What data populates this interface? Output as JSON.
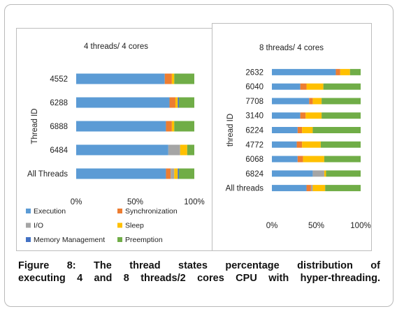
{
  "chart_data": [
    {
      "type": "bar",
      "orientation": "horizontal",
      "stacked": "percent",
      "title": "4 threads/ 4 cores",
      "ylabel": "Thread ID",
      "categories": [
        "4552",
        "6288",
        "6888",
        "6484",
        "All Threads"
      ],
      "xticks": [
        "0%",
        "50%",
        "100%"
      ],
      "xlim": [
        0,
        100
      ],
      "grid": false,
      "legend_position": "bottom",
      "series": [
        {
          "name": "Execution",
          "color": "#5b9bd5",
          "values": [
            75,
            79,
            76,
            78,
            76
          ]
        },
        {
          "name": "Synchronization",
          "color": "#ed7d31",
          "values": [
            6,
            5,
            5,
            0,
            4
          ]
        },
        {
          "name": "I/O",
          "color": "#a5a5a5",
          "values": [
            0,
            0,
            0,
            10,
            3
          ]
        },
        {
          "name": "Sleep",
          "color": "#ffc000",
          "values": [
            2,
            2,
            2,
            6,
            3
          ]
        },
        {
          "name": "Memory Management",
          "color": "#4472c4",
          "values": [
            0,
            1,
            0,
            0,
            1
          ]
        },
        {
          "name": "Preemption",
          "color": "#70ad47",
          "values": [
            17,
            13,
            17,
            6,
            13
          ]
        }
      ]
    },
    {
      "type": "bar",
      "orientation": "horizontal",
      "stacked": "percent",
      "title": "8 threads/ 4 cores",
      "ylabel": "thread ID",
      "categories": [
        "2632",
        "6040",
        "7708",
        "3140",
        "6224",
        "4772",
        "6068",
        "6824",
        "All threads"
      ],
      "xticks": [
        "0%",
        "50%",
        "100%"
      ],
      "xlim": [
        0,
        100
      ],
      "grid": false,
      "series": [
        {
          "name": "Execution",
          "color": "#5b9bd5",
          "values": [
            72,
            32,
            42,
            32,
            29,
            28,
            29,
            46,
            39
          ]
        },
        {
          "name": "Synchronization",
          "color": "#ed7d31",
          "values": [
            5,
            7,
            4,
            6,
            5,
            6,
            6,
            0,
            5
          ]
        },
        {
          "name": "I/O",
          "color": "#a5a5a5",
          "values": [
            0,
            0,
            0,
            0,
            0,
            0,
            0,
            13,
            2
          ]
        },
        {
          "name": "Sleep",
          "color": "#ffc000",
          "values": [
            11,
            19,
            10,
            18,
            12,
            21,
            24,
            2,
            14
          ]
        },
        {
          "name": "Memory Management",
          "color": "#4472c4",
          "values": [
            0,
            0,
            0,
            0,
            0,
            0,
            0,
            0,
            0
          ]
        },
        {
          "name": "Preemption",
          "color": "#70ad47",
          "values": [
            12,
            42,
            44,
            44,
            54,
            45,
            41,
            39,
            40
          ]
        }
      ]
    }
  ],
  "caption": {
    "line1": "Figure 8: The thread states percentage distribution of",
    "line2": "executing 4 and 8 threads/2 cores CPU with hyper-threading."
  }
}
